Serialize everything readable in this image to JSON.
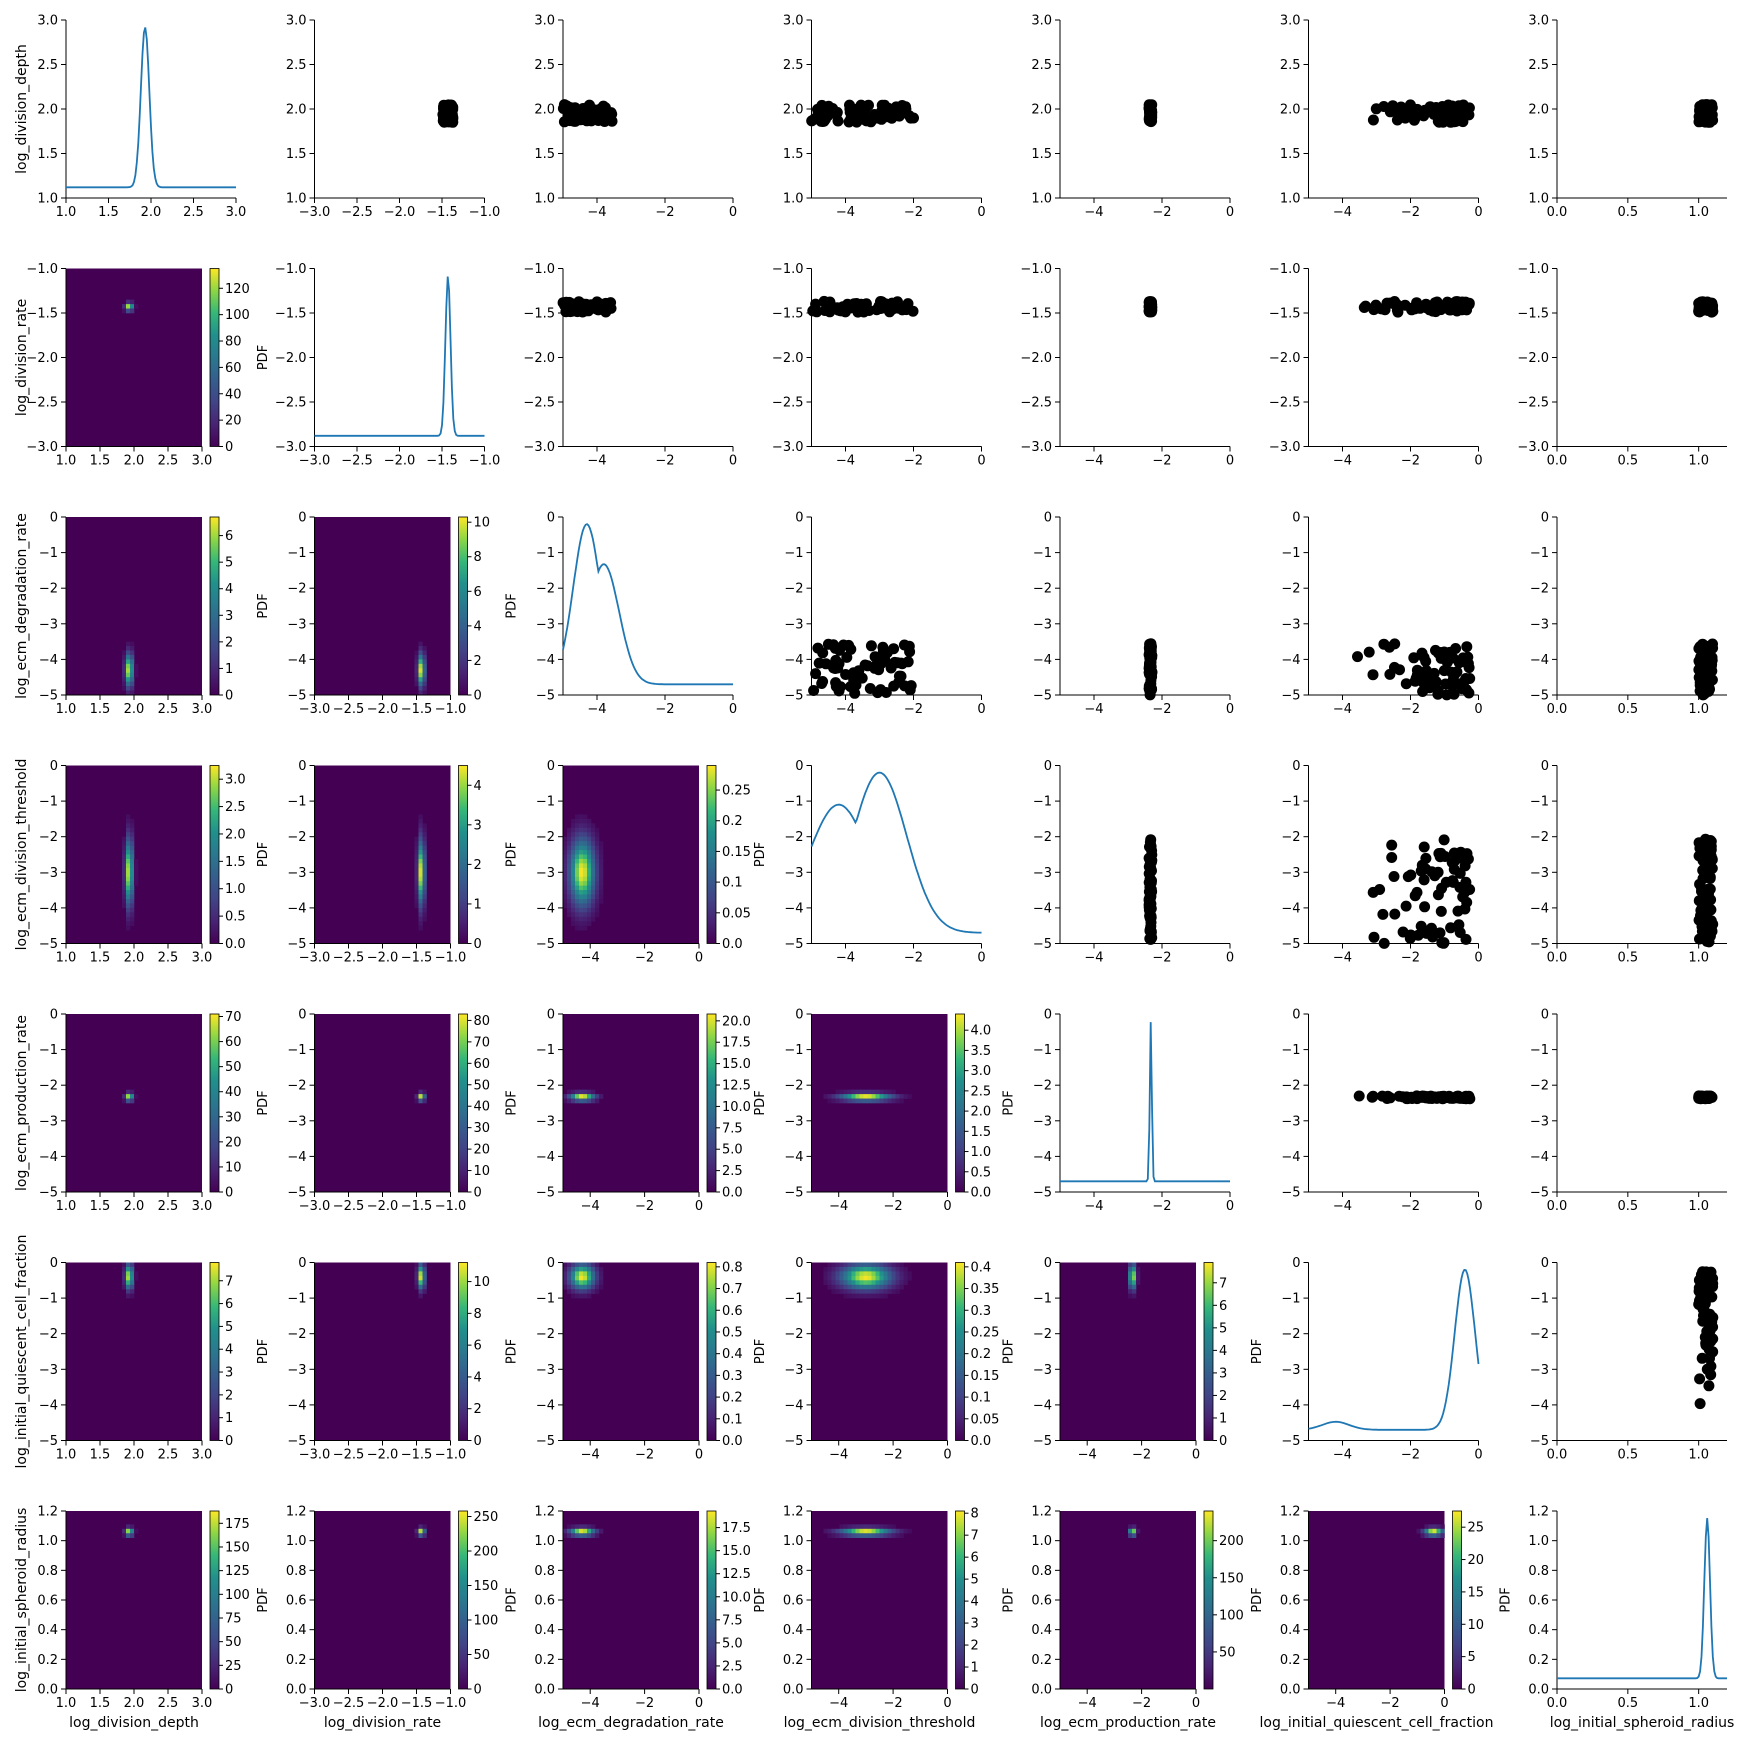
{
  "chart_data": {
    "type": "pairplot",
    "parameters": [
      "log_division_depth",
      "log_division_rate",
      "log_ecm_degradation_rate",
      "log_ecm_division_threshold",
      "log_ecm_production_rate",
      "log_initial_quiescent_cell_fraction",
      "log_initial_spheroid_radius"
    ],
    "ranges": [
      [
        1.0,
        3.0
      ],
      [
        -3.0,
        -1.0
      ],
      [
        -5,
        0
      ],
      [
        -5,
        0
      ],
      [
        -5,
        0
      ],
      [
        -5,
        0
      ],
      [
        0.0,
        1.2
      ]
    ],
    "x_ticks": [
      [
        "1.0",
        "1.5",
        "2.0",
        "2.5",
        "3.0"
      ],
      [
        "−3.0",
        "−2.5",
        "−2.0",
        "−1.5",
        "−1.0"
      ],
      [
        "−4",
        "−2",
        "0"
      ],
      [
        "−4",
        "−2",
        "0"
      ],
      [
        "−4",
        "−2",
        "0"
      ],
      [
        "−4",
        "−2",
        "0"
      ],
      [
        "0.0",
        "0.5",
        "1.0"
      ]
    ],
    "y_ticks": [
      [
        "1.0",
        "1.5",
        "2.0",
        "2.5",
        "3.0"
      ],
      [
        "−3.0",
        "−2.5",
        "−2.0",
        "−1.5",
        "−1.0"
      ],
      [
        "−5",
        "−4",
        "−3",
        "−2",
        "−1",
        "0"
      ],
      [
        "−5",
        "−4",
        "−3",
        "−2",
        "−1",
        "0"
      ],
      [
        "−5",
        "−4",
        "−3",
        "−2",
        "−1",
        "0"
      ],
      [
        "−5",
        "−4",
        "−3",
        "−2",
        "−1",
        "0"
      ],
      [
        "0.0",
        "0.2",
        "0.4",
        "0.6",
        "0.8",
        "1.0",
        "1.2"
      ]
    ],
    "posterior_mode": [
      1.93,
      -1.43,
      -4.3,
      -3.0,
      -2.33,
      -0.4,
      1.06
    ],
    "posterior_spread": [
      0.05,
      0.03,
      0.4,
      0.8,
      0.03,
      0.3,
      0.02
    ],
    "scatter_extent": [
      [
        1.85,
        2.05
      ],
      [
        -1.49,
        -1.37
      ],
      [
        -5.0,
        -3.55
      ],
      [
        -5.0,
        -2.0
      ],
      [
        -2.38,
        -2.3
      ],
      [
        -4.3,
        -0.25
      ],
      [
        1.0,
        1.1
      ]
    ],
    "colorbar_label": "PDF",
    "colorbars": {
      "1-0": {
        "ticks": [
          0,
          20,
          40,
          60,
          80,
          100,
          120
        ],
        "max": 135
      },
      "2-0": {
        "ticks": [
          0,
          1,
          2,
          3,
          4,
          5,
          6
        ],
        "max": 6.7
      },
      "2-1": {
        "ticks": [
          0,
          2,
          4,
          6,
          8,
          10
        ],
        "max": 10.3
      },
      "3-0": {
        "ticks": [
          0.0,
          0.5,
          1.0,
          1.5,
          2.0,
          2.5,
          3.0
        ],
        "max": 3.25
      },
      "3-1": {
        "ticks": [
          0,
          1,
          2,
          3,
          4
        ],
        "max": 4.5
      },
      "3-2": {
        "ticks": [
          0.0,
          0.05,
          0.1,
          0.15,
          0.2,
          0.25
        ],
        "max": 0.29
      },
      "4-0": {
        "ticks": [
          0,
          10,
          20,
          30,
          40,
          50,
          60,
          70
        ],
        "max": 71
      },
      "4-1": {
        "ticks": [
          0,
          10,
          20,
          30,
          40,
          50,
          60,
          70,
          80
        ],
        "max": 83
      },
      "4-2": {
        "ticks": [
          0.0,
          2.5,
          5.0,
          7.5,
          10.0,
          12.5,
          15.0,
          17.5,
          20.0
        ],
        "max": 20.8
      },
      "4-3": {
        "ticks": [
          0.0,
          0.5,
          1.0,
          1.5,
          2.0,
          2.5,
          3.0,
          3.5,
          4.0
        ],
        "max": 4.4
      },
      "5-0": {
        "ticks": [
          0,
          1,
          2,
          3,
          4,
          5,
          6,
          7
        ],
        "max": 7.8
      },
      "5-1": {
        "ticks": [
          0,
          2,
          4,
          6,
          8,
          10
        ],
        "max": 11.2
      },
      "5-2": {
        "ticks": [
          0.0,
          0.1,
          0.2,
          0.3,
          0.4,
          0.5,
          0.6,
          0.7,
          0.8
        ],
        "max": 0.82
      },
      "5-3": {
        "ticks": [
          0.0,
          0.05,
          0.1,
          0.15,
          0.2,
          0.25,
          0.3,
          0.35,
          0.4
        ],
        "max": 0.41
      },
      "5-4": {
        "ticks": [
          0,
          1,
          2,
          3,
          4,
          5,
          6,
          7
        ],
        "max": 7.9
      },
      "6-0": {
        "ticks": [
          0,
          25,
          50,
          75,
          100,
          125,
          150,
          175
        ],
        "max": 188
      },
      "6-1": {
        "ticks": [
          0,
          50,
          100,
          150,
          200,
          250
        ],
        "max": 258
      },
      "6-2": {
        "ticks": [
          0.0,
          2.5,
          5.0,
          7.5,
          10.0,
          12.5,
          15.0,
          17.5
        ],
        "max": 19.3
      },
      "6-3": {
        "ticks": [
          0,
          1,
          2,
          3,
          4,
          5,
          6,
          7,
          8
        ],
        "max": 8.1
      },
      "6-4": {
        "ticks": [
          50,
          100,
          150,
          200
        ],
        "max": 240
      },
      "6-5": {
        "ticks": [
          0,
          5,
          10,
          15,
          20,
          25
        ],
        "max": 27.5
      }
    },
    "diagonal": "kde line",
    "upper_triangle": "scatter",
    "lower_triangle": "heatmap (viridis) with colorbar"
  }
}
